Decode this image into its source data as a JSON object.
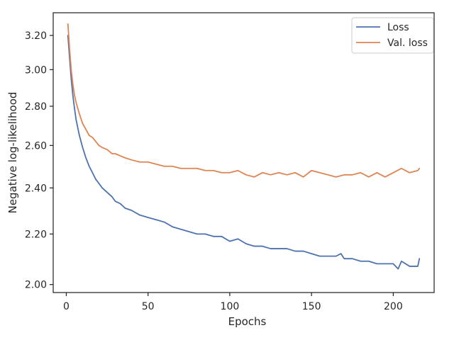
{
  "chart_data": {
    "type": "line",
    "title": "",
    "xlabel": "Epochs",
    "ylabel": "Negative log-likelihood",
    "xlim": [
      -8,
      225
    ],
    "ylim": [
      1.97,
      3.34
    ],
    "y_scale": "log",
    "grid": false,
    "legend_position": "top-right",
    "x_ticks": [
      0,
      50,
      100,
      150,
      200
    ],
    "x_tick_labels": [
      "0",
      "50",
      "100",
      "150",
      "200"
    ],
    "y_ticks": [
      2.0,
      2.2,
      2.4,
      2.6,
      2.8,
      3.0,
      3.2
    ],
    "y_tick_labels": [
      "2.00",
      "2.20",
      "2.40",
      "2.60",
      "2.80",
      "3.00",
      "3.20"
    ],
    "series": [
      {
        "name": "Loss",
        "color": "#4c72b0",
        "x": [
          1,
          2,
          3,
          4,
          5,
          6,
          8,
          10,
          12,
          14,
          16,
          18,
          20,
          22,
          25,
          28,
          30,
          33,
          36,
          40,
          45,
          50,
          55,
          60,
          65,
          70,
          75,
          80,
          85,
          90,
          95,
          100,
          105,
          110,
          115,
          120,
          125,
          130,
          135,
          140,
          145,
          150,
          155,
          160,
          165,
          168,
          170,
          175,
          180,
          185,
          190,
          195,
          200,
          203,
          205,
          210,
          215,
          216
        ],
        "y": [
          3.2,
          3.07,
          2.95,
          2.86,
          2.79,
          2.73,
          2.65,
          2.59,
          2.54,
          2.5,
          2.47,
          2.44,
          2.42,
          2.4,
          2.38,
          2.36,
          2.34,
          2.33,
          2.31,
          2.3,
          2.28,
          2.27,
          2.26,
          2.25,
          2.23,
          2.22,
          2.21,
          2.2,
          2.2,
          2.19,
          2.19,
          2.17,
          2.18,
          2.16,
          2.15,
          2.15,
          2.14,
          2.14,
          2.14,
          2.13,
          2.13,
          2.12,
          2.11,
          2.11,
          2.11,
          2.12,
          2.1,
          2.1,
          2.09,
          2.09,
          2.08,
          2.08,
          2.08,
          2.06,
          2.09,
          2.07,
          2.07,
          2.1
        ]
      },
      {
        "name": "Val. loss",
        "color": "#dd8452",
        "x": [
          1,
          2,
          3,
          4,
          5,
          6,
          8,
          10,
          12,
          14,
          16,
          18,
          20,
          22,
          25,
          28,
          30,
          33,
          36,
          40,
          45,
          50,
          55,
          60,
          65,
          70,
          75,
          80,
          85,
          90,
          95,
          100,
          105,
          110,
          115,
          120,
          125,
          130,
          135,
          140,
          145,
          150,
          155,
          160,
          165,
          170,
          175,
          180,
          185,
          190,
          195,
          200,
          205,
          210,
          215,
          216
        ],
        "y": [
          3.27,
          3.12,
          3.0,
          2.92,
          2.86,
          2.82,
          2.76,
          2.71,
          2.68,
          2.65,
          2.64,
          2.62,
          2.6,
          2.59,
          2.58,
          2.56,
          2.56,
          2.55,
          2.54,
          2.53,
          2.52,
          2.52,
          2.51,
          2.5,
          2.5,
          2.49,
          2.49,
          2.49,
          2.48,
          2.48,
          2.47,
          2.47,
          2.48,
          2.46,
          2.45,
          2.47,
          2.46,
          2.47,
          2.46,
          2.47,
          2.45,
          2.48,
          2.47,
          2.46,
          2.45,
          2.46,
          2.46,
          2.47,
          2.45,
          2.47,
          2.45,
          2.47,
          2.49,
          2.47,
          2.48,
          2.49
        ]
      }
    ]
  }
}
